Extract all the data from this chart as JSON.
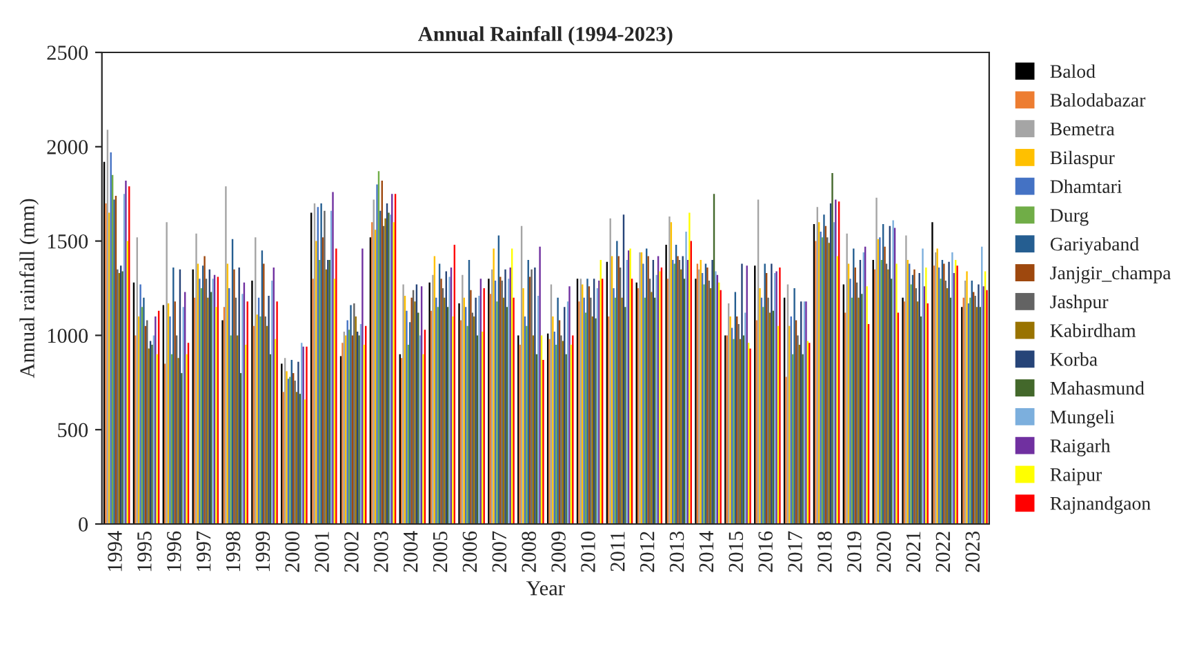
{
  "chart_data": {
    "type": "bar",
    "title": "Annual Rainfall (1994-2023)",
    "xlabel": "Year",
    "ylabel": "Annual rainfall (mm)",
    "categories": [
      "1994",
      "1995",
      "1996",
      "1997",
      "1998",
      "1999",
      "2000",
      "2001",
      "2002",
      "2003",
      "2004",
      "2005",
      "2006",
      "2007",
      "2008",
      "2009",
      "2010",
      "2011",
      "2012",
      "2013",
      "2014",
      "2015",
      "2016",
      "2017",
      "2018",
      "2019",
      "2020",
      "2021",
      "2022",
      "2023"
    ],
    "ylim": [
      0,
      2500
    ],
    "yticks": [
      0,
      500,
      1000,
      1500,
      2000,
      2500
    ],
    "grid": false,
    "legend": "right",
    "series": [
      {
        "name": "Balod",
        "color": "#000000",
        "values": [
          1920,
          1280,
          1160,
          1350,
          1080,
          1290,
          850,
          1650,
          890,
          1520,
          900,
          1280,
          1170,
          1300,
          1000,
          1010,
          1300,
          1390,
          1280,
          1480,
          1300,
          1000,
          1370,
          1200,
          1590,
          1270,
          1400,
          1200,
          1600,
          1150
        ]
      },
      {
        "name": "Balodabazar",
        "color": "#ed7d31",
        "values": [
          1700,
          1000,
          850,
          1200,
          1150,
          1050,
          700,
          1300,
          960,
          1600,
          880,
          1130,
          1080,
          1220,
          950,
          980,
          1180,
          1100,
          1250,
          1300,
          1380,
          1000,
          1080,
          780,
          1500,
          1120,
          1350,
          1180,
          1370,
          1200
        ]
      },
      {
        "name": "Bemetra",
        "color": "#a5a5a5",
        "values": [
          2090,
          1520,
          1600,
          1540,
          1790,
          1520,
          880,
          1700,
          1020,
          1720,
          1270,
          1320,
          1320,
          1350,
          1580,
          1270,
          1300,
          1620,
          1440,
          1630,
          1350,
          1170,
          1720,
          1270,
          1680,
          1540,
          1730,
          1530,
          1440,
          1290
        ]
      },
      {
        "name": "Bilaspur",
        "color": "#ffc000",
        "values": [
          1650,
          1100,
          1170,
          1380,
          1380,
          1110,
          810,
          1500,
          1000,
          1560,
          1210,
          1420,
          1200,
          1460,
          1250,
          1100,
          1270,
          1420,
          1440,
          1600,
          1400,
          1100,
          1250,
          1050,
          1600,
          1380,
          1510,
          1400,
          1460,
          1340
        ]
      },
      {
        "name": "Dhamtari",
        "color": "#4472c4",
        "values": [
          1970,
          1270,
          1100,
          1300,
          1250,
          1200,
          770,
          1680,
          1080,
          1800,
          1130,
          1200,
          1150,
          1290,
          1100,
          1020,
          1200,
          1250,
          1380,
          1400,
          1330,
          1040,
          1200,
          1100,
          1550,
          1300,
          1520,
          1380,
          1360,
          1170
        ]
      },
      {
        "name": "Durg",
        "color": "#70ad47",
        "values": [
          1850,
          1150,
          900,
          1250,
          1000,
          1100,
          780,
          1400,
          1030,
          1870,
          950,
          1150,
          1050,
          1180,
          1050,
          950,
          1120,
          1200,
          1200,
          1380,
          1270,
          980,
          1150,
          900,
          1520,
          1200,
          1400,
          1270,
          1300,
          1200
        ]
      },
      {
        "name": "Gariyaband",
        "color": "#255e91",
        "values": [
          1720,
          1200,
          1360,
          1370,
          1510,
          1450,
          870,
          1700,
          1160,
          1660,
          1070,
          1380,
          1400,
          1530,
          1400,
          1200,
          1300,
          1500,
          1460,
          1480,
          1380,
          1230,
          1380,
          1250,
          1640,
          1460,
          1590,
          1320,
          1400,
          1290
        ]
      },
      {
        "name": "Janjgir_champa",
        "color": "#9e480e",
        "values": [
          1740,
          1050,
          1180,
          1420,
          1350,
          1380,
          800,
          1520,
          1000,
          1820,
          1200,
          1300,
          1240,
          1310,
          1310,
          1080,
          1260,
          1420,
          1420,
          1420,
          1360,
          1100,
          1330,
          1080,
          1580,
          1360,
          1470,
          1350,
          1380,
          1230
        ]
      },
      {
        "name": "Jashpur",
        "color": "#636363",
        "values": [
          1350,
          1080,
          1000,
          1300,
          1200,
          1100,
          760,
          1660,
          1170,
          1580,
          1240,
          1250,
          1120,
          1290,
          1350,
          1000,
          1200,
          1360,
          1300,
          1400,
          1290,
          1060,
          1200,
          1000,
          1520,
          1280,
          1380,
          1250,
          1290,
          1210
        ]
      },
      {
        "name": "Kabirdham",
        "color": "#997300",
        "values": [
          1330,
          930,
          880,
          1200,
          1000,
          1050,
          700,
          1350,
          1100,
          1620,
          1180,
          1200,
          1100,
          1200,
          1000,
          970,
          1100,
          1200,
          1230,
          1350,
          1250,
          980,
          1120,
          950,
          1490,
          1200,
          1350,
          1180,
          1250,
          1150
        ]
      },
      {
        "name": "Korba",
        "color": "#264478",
        "values": [
          1370,
          970,
          1350,
          1350,
          1360,
          1210,
          860,
          1400,
          1020,
          1700,
          1270,
          1340,
          1200,
          1350,
          1360,
          1150,
          1300,
          1640,
          1400,
          1420,
          1400,
          1380,
          1380,
          1180,
          1700,
          1400,
          1580,
          1330,
          1390,
          1270
        ]
      },
      {
        "name": "Mahasmund",
        "color": "#43682b",
        "values": [
          1340,
          950,
          800,
          1230,
          800,
          900,
          690,
          1400,
          1000,
          1650,
          1120,
          1150,
          1000,
          1150,
          900,
          900,
          1090,
          1150,
          1200,
          1300,
          1750,
          1000,
          1130,
          900,
          1860,
          1220,
          1300,
          1100,
          1200,
          1150
        ]
      },
      {
        "name": "Mungeli",
        "color": "#7cafdd",
        "values": [
          1750,
          1000,
          1150,
          1300,
          1220,
          1290,
          960,
          1660,
          1060,
          1640,
          1000,
          1310,
          1210,
          1300,
          1210,
          1180,
          1250,
          1400,
          1320,
          1550,
          1340,
          1120,
          1330,
          1180,
          1600,
          1440,
          1610,
          1460,
          1440,
          1470
        ]
      },
      {
        "name": "Raigarh",
        "color": "#7030a0",
        "values": [
          1820,
          1100,
          1230,
          1320,
          1280,
          1360,
          940,
          1760,
          1460,
          1750,
          1260,
          1360,
          1300,
          1360,
          1470,
          1260,
          1290,
          1450,
          1420,
          1400,
          1320,
          1370,
          1340,
          1180,
          1720,
          1470,
          1570,
          1260,
          1330,
          1260
        ]
      },
      {
        "name": "Raipur",
        "color": "#ffff00",
        "values": [
          1500,
          900,
          900,
          1150,
          950,
          980,
          660,
          1300,
          950,
          1600,
          900,
          1100,
          1020,
          1460,
          1000,
          950,
          1400,
          1460,
          1340,
          1650,
          1280,
          960,
          1050,
          970,
          1420,
          1260,
          1380,
          1360,
          1400,
          1340
        ]
      },
      {
        "name": "Rajnandgaon",
        "color": "#ff0000",
        "values": [
          1790,
          1130,
          960,
          1310,
          1180,
          1180,
          940,
          1460,
          1050,
          1750,
          1030,
          1480,
          1250,
          1200,
          870,
          1000,
          1300,
          1300,
          1360,
          1500,
          1240,
          930,
          1360,
          960,
          1710,
          1060,
          1120,
          1170,
          1370,
          1240
        ]
      }
    ]
  }
}
